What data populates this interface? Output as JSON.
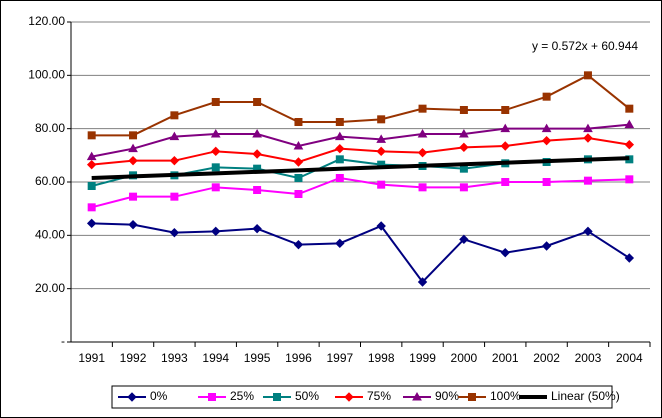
{
  "chart_data": {
    "type": "line",
    "annotation": "y = 0.572x + 60.944",
    "categories": [
      "1991",
      "1992",
      "1993",
      "1994",
      "1995",
      "1996",
      "1997",
      "1998",
      "1999",
      "2000",
      "2001",
      "2002",
      "2003",
      "2004"
    ],
    "ylim": [
      0,
      120
    ],
    "yticks": [
      {
        "value": 0,
        "label": "-"
      },
      {
        "value": 20,
        "label": "20.00"
      },
      {
        "value": 40,
        "label": "40.00"
      },
      {
        "value": 60,
        "label": "60.00"
      },
      {
        "value": 80,
        "label": "80.00"
      },
      {
        "value": 100,
        "label": "100.00"
      },
      {
        "value": 120,
        "label": "120.00"
      }
    ],
    "grid": true,
    "legend": "bottom",
    "series": [
      {
        "name": "0%",
        "color": "#000080",
        "marker": "diamond",
        "values": [
          44.5,
          44,
          41,
          41.5,
          42.5,
          36.5,
          37,
          43.5,
          22.5,
          38.5,
          33.5,
          36,
          41.5,
          31.5
        ]
      },
      {
        "name": "25%",
        "color": "#ff00ff",
        "marker": "square",
        "values": [
          50.5,
          54.5,
          54.5,
          58,
          57,
          55.5,
          61.5,
          59,
          58,
          58,
          60,
          60,
          60.5,
          61
        ]
      },
      {
        "name": "50%",
        "color": "#008080",
        "marker": "square",
        "values": [
          58.5,
          62.5,
          62.5,
          65.5,
          65,
          61.5,
          68.5,
          66.5,
          66,
          65,
          67,
          67.5,
          68.5,
          68.5
        ]
      },
      {
        "name": "75%",
        "color": "#ff0000",
        "marker": "diamond",
        "values": [
          66.5,
          68,
          68,
          71.5,
          70.5,
          67.5,
          72.5,
          71.5,
          71,
          73,
          73.5,
          75.5,
          76.5,
          74
        ]
      },
      {
        "name": "90%",
        "color": "#800080",
        "marker": "triangle",
        "values": [
          69.5,
          72.5,
          77,
          78,
          78,
          73.5,
          77,
          76,
          78,
          78,
          80,
          80,
          80,
          81.5
        ]
      },
      {
        "name": "100%",
        "color": "#993300",
        "marker": "square",
        "values": [
          77.5,
          77.5,
          85,
          90,
          90,
          82.5,
          82.5,
          83.5,
          87.5,
          87,
          87,
          92,
          100,
          87.5
        ]
      },
      {
        "name": "Linear (50%)",
        "color": "#000000",
        "marker": "none",
        "width": 4,
        "values": [
          61.516,
          62.088,
          62.66,
          63.232,
          63.804,
          64.376,
          64.948,
          65.52,
          66.092,
          66.664,
          67.236,
          67.808,
          68.38,
          68.952
        ]
      }
    ]
  }
}
